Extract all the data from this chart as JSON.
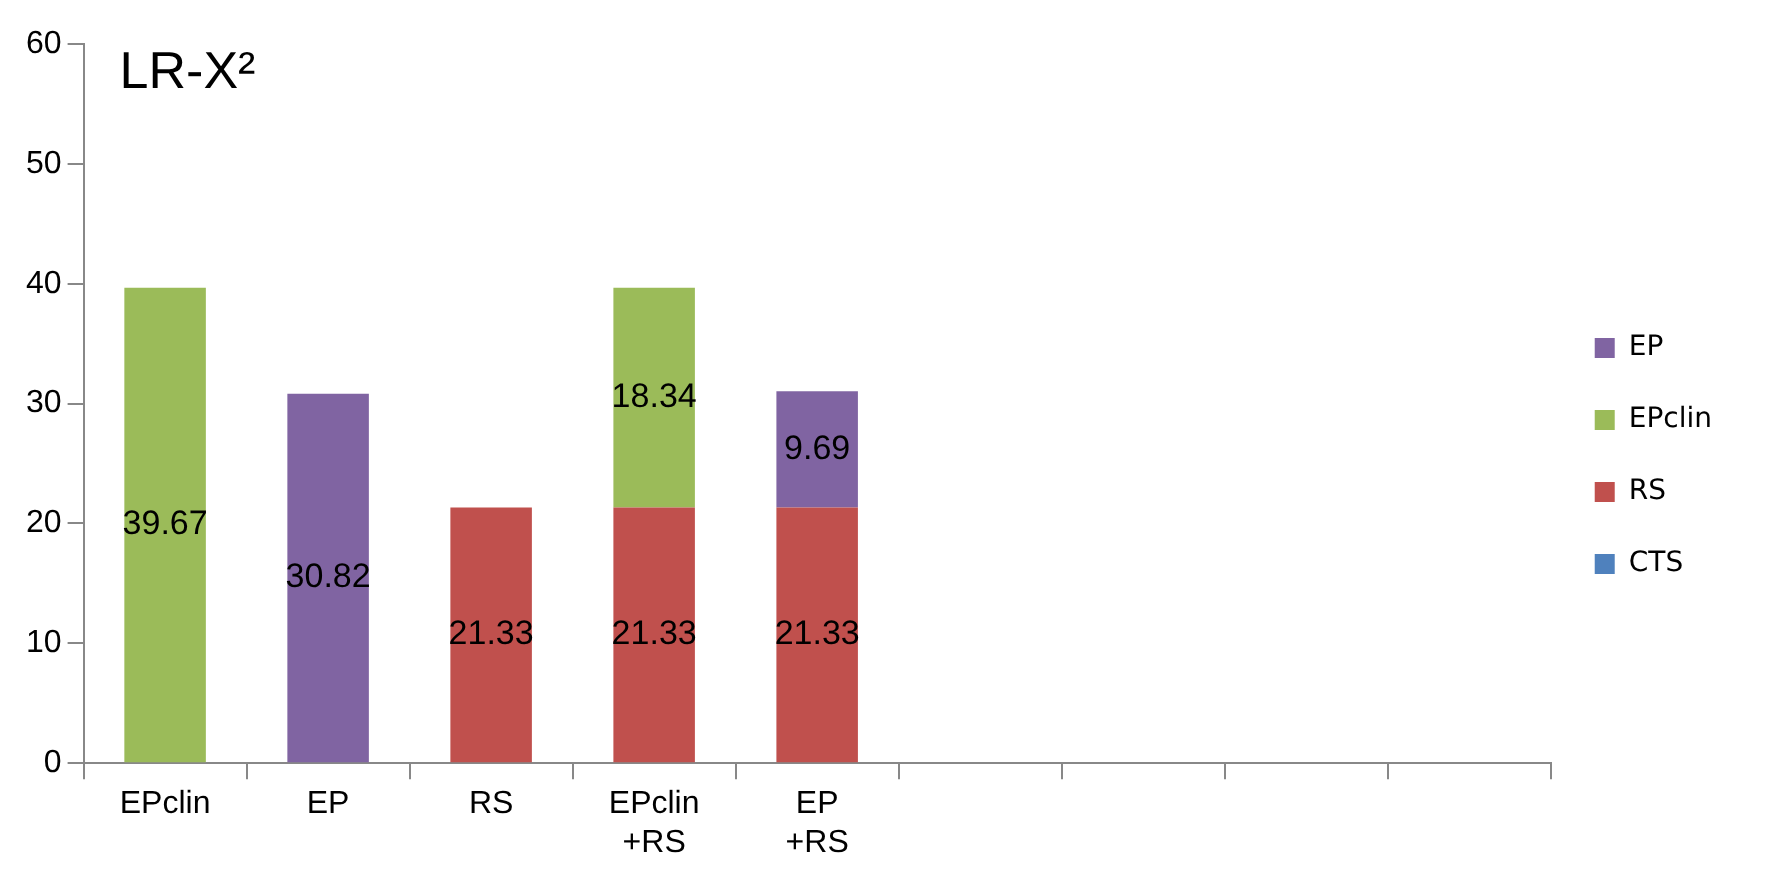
{
  "chart_data": {
    "type": "bar",
    "title": "LR-X²",
    "stacked": true,
    "categories": [
      "EPclin",
      "EP",
      "RS",
      "EPclin +RS",
      "EP +RS",
      null,
      null,
      null,
      null
    ],
    "series": [
      {
        "name": "CTS",
        "color": "#4f81bd",
        "values": [
          null,
          null,
          null,
          null,
          null,
          null,
          null,
          null,
          null
        ]
      },
      {
        "name": "RS",
        "color": "#c0504d",
        "values": [
          null,
          null,
          21.33,
          21.33,
          21.33,
          null,
          null,
          null,
          null
        ]
      },
      {
        "name": "EPclin",
        "color": "#9bbb59",
        "values": [
          39.67,
          null,
          null,
          18.34,
          null,
          null,
          null,
          null,
          null
        ]
      },
      {
        "name": "EP",
        "color": "#8064a2",
        "values": [
          null,
          30.82,
          null,
          null,
          9.69,
          null,
          null,
          null,
          null
        ]
      }
    ],
    "ylim": [
      0,
      60
    ],
    "yticks": [
      0,
      10,
      20,
      30,
      40,
      50,
      60
    ],
    "grid": false,
    "legend": "right",
    "data_labels": true
  }
}
